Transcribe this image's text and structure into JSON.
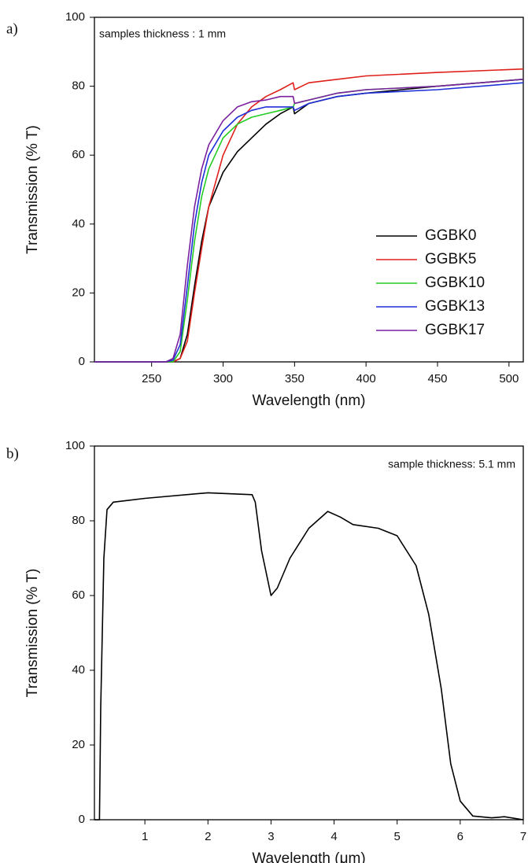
{
  "chart_data": [
    {
      "type": "line",
      "panel_label": "a)",
      "annotation": "samples thickness : 1 mm",
      "x_label": "Wavelength (nm)",
      "y_label": "Transmission (% T)",
      "xlim": [
        210,
        510
      ],
      "xticks": [
        250,
        300,
        350,
        400,
        450,
        500
      ],
      "ylim": [
        0,
        100
      ],
      "yticks": [
        0,
        20,
        40,
        60,
        80,
        100
      ],
      "x": [
        210,
        260,
        265,
        270,
        275,
        280,
        285,
        290,
        300,
        310,
        320,
        330,
        340,
        349,
        350,
        360,
        380,
        400,
        450,
        510
      ],
      "series": [
        {
          "name": "GGBK0",
          "color": "#000000",
          "values": [
            0,
            0,
            0,
            1,
            8,
            22,
            35,
            45,
            55,
            61,
            65,
            69,
            72,
            74,
            72,
            75,
            77,
            78,
            80,
            82
          ]
        },
        {
          "name": "GGBK5",
          "color": "#e0201b",
          "values": [
            0,
            0,
            0,
            1,
            6,
            20,
            33,
            45,
            60,
            69,
            74,
            77,
            79,
            81,
            79,
            81,
            82,
            83,
            84,
            85
          ]
        },
        {
          "name": "GGBK10",
          "color": "#22cc22",
          "values": [
            0,
            0,
            0,
            3,
            18,
            35,
            48,
            56,
            65,
            69,
            71,
            72,
            73,
            74,
            75,
            76,
            78,
            79,
            80,
            82
          ]
        },
        {
          "name": "GGBK13",
          "color": "#1f2fd8",
          "values": [
            0,
            0,
            0.5,
            5,
            22,
            40,
            52,
            60,
            67,
            71,
            73,
            74,
            74,
            74,
            73,
            75,
            77,
            78,
            79,
            81
          ]
        },
        {
          "name": "GGBK17",
          "color": "#7a1fa0",
          "values": [
            0,
            0,
            1,
            8,
            28,
            45,
            56,
            63,
            70,
            74,
            75.5,
            76,
            77,
            77,
            75,
            76,
            78,
            79,
            80,
            82
          ]
        }
      ]
    },
    {
      "type": "line",
      "panel_label": "b)",
      "annotation": "sample thickness: 5.1 mm",
      "x_label": "Wavelength (μm)",
      "y_label": "Transmission (% T)",
      "xlim": [
        0.2,
        7
      ],
      "xticks": [
        1,
        2,
        3,
        4,
        5,
        6,
        7
      ],
      "ylim": [
        0,
        100
      ],
      "yticks": [
        0,
        20,
        40,
        60,
        80,
        100
      ],
      "x": [
        0.2,
        0.28,
        0.3,
        0.35,
        0.4,
        0.5,
        1,
        2,
        2.7,
        2.75,
        2.85,
        3,
        3.1,
        3.3,
        3.6,
        3.9,
        4.1,
        4.3,
        4.7,
        5,
        5.3,
        5.5,
        5.7,
        5.85,
        6,
        6.2,
        6.5,
        6.7,
        7
      ],
      "series": [
        {
          "color": "#000000",
          "values": [
            0,
            0,
            30,
            70,
            83,
            85,
            86,
            87.5,
            87,
            85,
            72,
            60,
            62,
            70,
            78,
            82.5,
            81,
            79,
            78,
            76,
            68,
            55,
            35,
            15,
            5,
            1,
            0.5,
            0.8,
            0
          ]
        }
      ]
    }
  ]
}
